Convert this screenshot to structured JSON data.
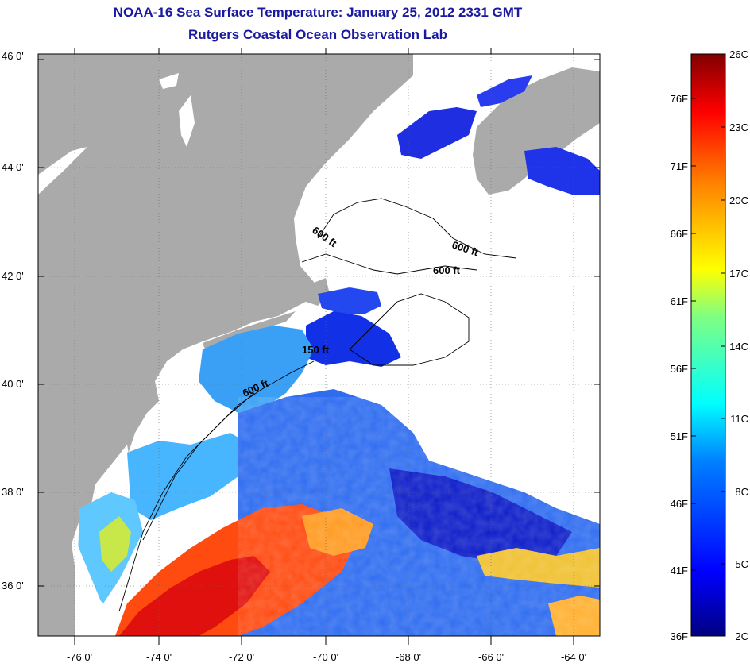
{
  "header": {
    "title": "NOAA-16 Sea Surface Temperature:  January 25, 2012 2331 GMT",
    "subtitle": "Rutgers Coastal Ocean Observation Lab"
  },
  "map": {
    "lon_labels": [
      "-76 0'",
      "-74 0'",
      "-72 0'",
      "-70 0'",
      "-68 0'",
      "-66 0'",
      "-64 0'"
    ],
    "lat_labels": [
      "46 0'",
      "44 0'",
      "42 0'",
      "40 0'",
      "38 0'",
      "36 0'"
    ],
    "contour_labels": [
      {
        "id": "c1",
        "text": "600 ft"
      },
      {
        "id": "c2",
        "text": "600 ft"
      },
      {
        "id": "c3",
        "text": "600 ft"
      },
      {
        "id": "c4",
        "text": "150 ft"
      },
      {
        "id": "c5",
        "text": "600 ft"
      }
    ],
    "colors": {
      "land": "#aaaaaa",
      "cloud": "#ffffff",
      "title": "#1a1aa0"
    }
  },
  "colorbar": {
    "fahrenheit_labels": [
      "76F",
      "71F",
      "66F",
      "61F",
      "56F",
      "51F",
      "46F",
      "41F",
      "36F"
    ],
    "celsius_labels": [
      "26C",
      "23C",
      "20C",
      "17C",
      "14C",
      "11C",
      "8C",
      "5C",
      "2C"
    ],
    "colormap": [
      "#000080",
      "#0000ff",
      "#0080ff",
      "#00ffff",
      "#80ff80",
      "#ffff00",
      "#ff8000",
      "#ff0000",
      "#800000"
    ]
  }
}
